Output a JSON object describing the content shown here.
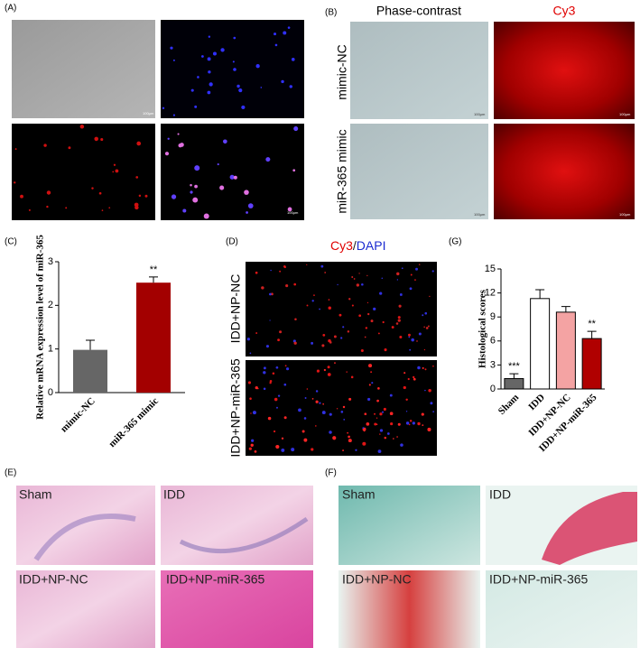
{
  "figure": {
    "A": {
      "label": "(A)",
      "scale_bars": [
        "100μm",
        "100μm"
      ]
    },
    "B": {
      "label": "(B)",
      "columns": [
        "Phase-contrast",
        "Cy3"
      ],
      "rows": [
        "mimic-NC",
        "miR-365 mimic"
      ],
      "scale_bars": [
        "100μm",
        "100μm",
        "100μm",
        "100μm"
      ]
    },
    "C": {
      "label": "(C)"
    },
    "D": {
      "label": "(D)",
      "title_parts": [
        "Cy3",
        "/",
        "DAPI"
      ],
      "rows": [
        "IDD+NP-NC",
        "IDD+NP-miR-365"
      ]
    },
    "E": {
      "label": "(E)",
      "images": [
        "Sham",
        "IDD",
        "IDD+NP-NC",
        "IDD+NP-miR-365"
      ]
    },
    "F": {
      "label": "(F)",
      "images": [
        "Sham",
        "IDD",
        "IDD+NP-NC",
        "IDD+NP-miR-365"
      ]
    },
    "G": {
      "label": "(G)"
    }
  },
  "chart_data": [
    {
      "type": "bar",
      "ylabel": "Relative mRNA expression level of miR-365",
      "categories": [
        "mimic-NC",
        "miR-365 mimic"
      ],
      "values": [
        0.98,
        2.52
      ],
      "errors": [
        0.22,
        0.13
      ],
      "colors": [
        "#666666",
        "#a30000"
      ],
      "ylim": [
        0,
        3
      ],
      "yticks": [
        0,
        1,
        2,
        3
      ],
      "annotations": [
        {
          "category": "miR-365 mimic",
          "text": "**"
        }
      ]
    },
    {
      "type": "bar",
      "ylabel": "Histological scores",
      "categories": [
        "Sham",
        "IDD",
        "IDD+NP-NC",
        "IDD+NP-miR-365"
      ],
      "values": [
        1.3,
        11.3,
        9.6,
        6.3
      ],
      "errors": [
        0.6,
        1.1,
        0.7,
        0.9
      ],
      "colors": [
        "#666666",
        "#ffffff",
        "#f4a3a3",
        "#b00000"
      ],
      "ylim": [
        0,
        15
      ],
      "yticks": [
        0,
        3,
        6,
        9,
        12,
        15
      ],
      "annotations": [
        {
          "category": "Sham",
          "text": "***"
        },
        {
          "category": "IDD+NP-miR-365",
          "text": "**"
        }
      ]
    }
  ]
}
